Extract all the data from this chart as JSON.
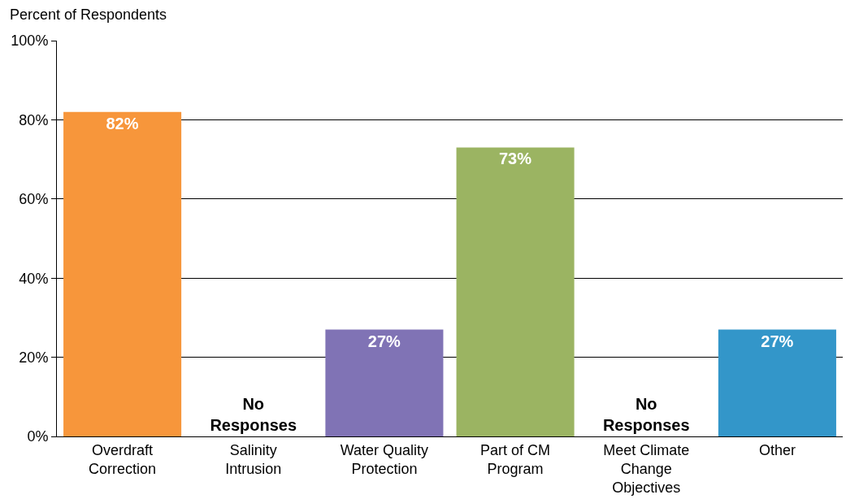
{
  "chart_data": {
    "type": "bar",
    "ylabel": "Percent of Respondents",
    "categories": [
      "Overdraft Correction",
      "Salinity Intrusion",
      "Water Quality Protection",
      "Part of CM Program",
      "Meet Climate Change Objectives",
      "Other"
    ],
    "values": [
      82,
      0,
      27,
      73,
      0,
      27
    ],
    "value_labels": [
      "82%",
      "No Responses",
      "27%",
      "73%",
      "No Responses",
      "27%"
    ],
    "colors": [
      "#f7963b",
      null,
      "#8073b5",
      "#9bb462",
      null,
      "#3396c9"
    ],
    "ylim": [
      0,
      100
    ],
    "yticks": [
      {
        "value": 0,
        "label": "0%"
      },
      {
        "value": 20,
        "label": "20%"
      },
      {
        "value": 40,
        "label": "40%"
      },
      {
        "value": 60,
        "label": "60%"
      },
      {
        "value": 80,
        "label": "80%"
      },
      {
        "value": 100,
        "label": "100%"
      }
    ],
    "grid": "y",
    "legend": false
  }
}
